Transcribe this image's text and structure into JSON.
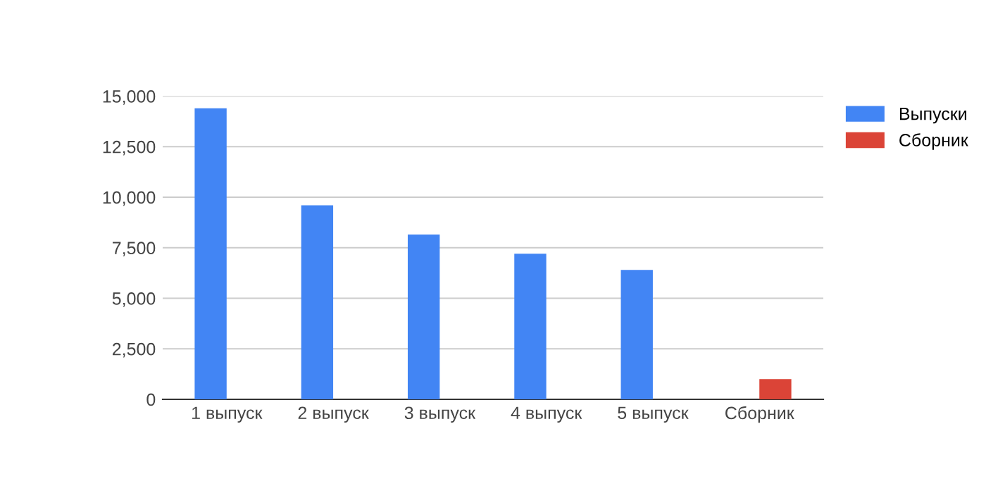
{
  "chart_data": {
    "type": "bar",
    "categories": [
      "1 выпуск",
      "2 выпуск",
      "3 выпуск",
      "4 выпуск",
      "5 выпуск",
      "Сборник"
    ],
    "series": [
      {
        "name": "Выпуски",
        "color": "#4285f4",
        "values": [
          14400,
          9600,
          8150,
          7200,
          6400,
          null
        ]
      },
      {
        "name": "Сборник",
        "color": "#db4437",
        "values": [
          null,
          null,
          null,
          null,
          null,
          1000
        ]
      }
    ],
    "ylim": [
      0,
      15000
    ],
    "yticks": [
      {
        "value": 0,
        "label": "0"
      },
      {
        "value": 2500,
        "label": "2,500"
      },
      {
        "value": 5000,
        "label": "5,000"
      },
      {
        "value": 7500,
        "label": "7,500"
      },
      {
        "value": 10000,
        "label": "10,000"
      },
      {
        "value": 12500,
        "label": "12,500"
      },
      {
        "value": 15000,
        "label": "15,000"
      }
    ],
    "grid": "y",
    "legend": "right"
  }
}
